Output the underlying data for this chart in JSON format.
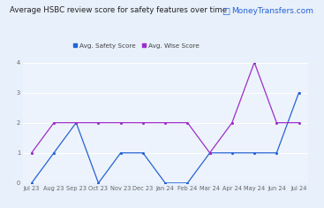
{
  "title": "Average HSBC review score for safety features over time",
  "logo_text": "MoneyTransfers.com",
  "x_labels": [
    "Jul 23",
    "Aug 23",
    "Sep 23",
    "Oct 23",
    "Nov 23",
    "Dec 23",
    "Jan 24",
    "Feb 24",
    "Mar 24",
    "Apr 24",
    "May 24",
    "Jun 24",
    "Jul 24"
  ],
  "safety_scores": [
    0,
    1,
    2,
    0,
    1,
    1,
    0,
    0,
    1,
    1,
    1,
    1,
    3
  ],
  "wise_scores": [
    1,
    2,
    2,
    2,
    2,
    2,
    2,
    2,
    1,
    2,
    4,
    2,
    2
  ],
  "safety_color": "#2563d4",
  "wise_color": "#9b2fc9",
  "bg_color": "#e8f0fb",
  "plot_bg": "#edf3fc",
  "ylim": [
    0,
    4
  ],
  "yticks": [
    0,
    1,
    2,
    3,
    4
  ],
  "legend_safety": "Avg. Safety Score",
  "legend_wise": "Avg. Wise Score",
  "title_fontsize": 6.2,
  "tick_fontsize": 4.8,
  "legend_fontsize": 5.2
}
